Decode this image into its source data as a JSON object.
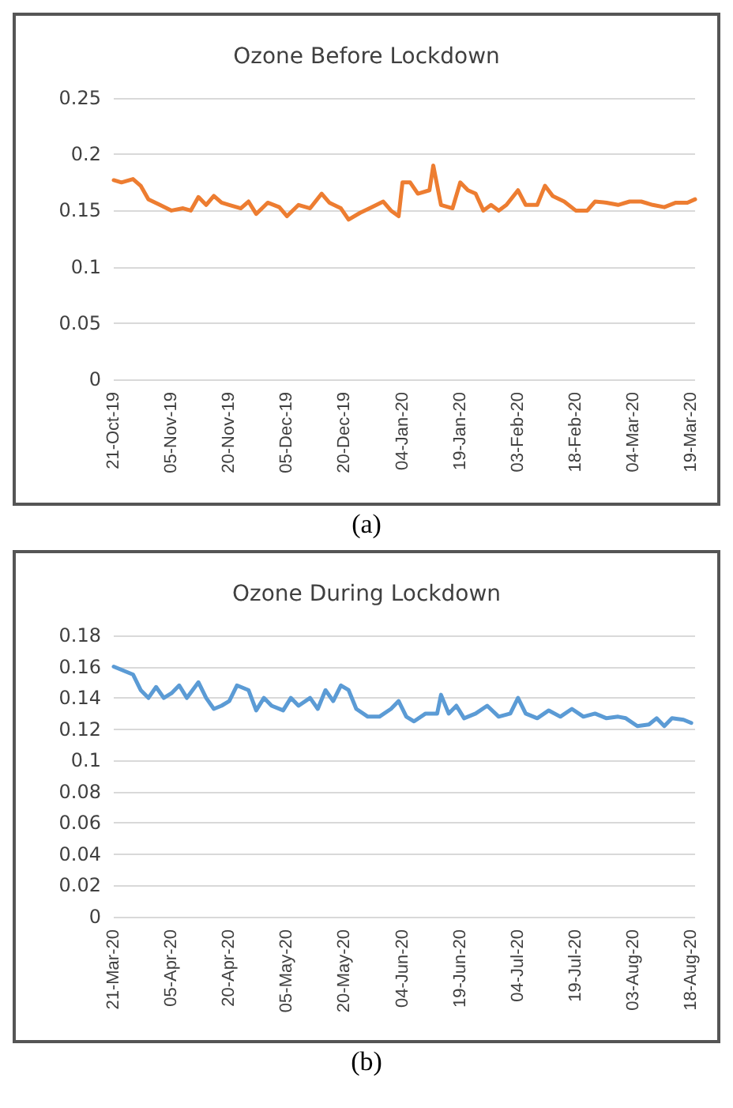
{
  "chart_data": [
    {
      "type": "line",
      "title": "Ozone Before Lockdown",
      "annotations": [
        "(a)"
      ],
      "grid": "y",
      "marker": "none",
      "line_style": "solid",
      "x": [
        "2019-10-21",
        "2019-10-23",
        "2019-10-26",
        "2019-10-28",
        "2019-10-30",
        "2019-11-02",
        "2019-11-05",
        "2019-11-08",
        "2019-11-10",
        "2019-11-12",
        "2019-11-14",
        "2019-11-16",
        "2019-11-18",
        "2019-11-20",
        "2019-11-23",
        "2019-11-25",
        "2019-11-27",
        "2019-11-30",
        "2019-12-03",
        "2019-12-05",
        "2019-12-08",
        "2019-12-11",
        "2019-12-14",
        "2019-12-16",
        "2019-12-19",
        "2019-12-21",
        "2019-12-24",
        "2019-12-27",
        "2019-12-30",
        "2020-01-01",
        "2020-01-03",
        "2020-01-04",
        "2020-01-06",
        "2020-01-08",
        "2020-01-11",
        "2020-01-12",
        "2020-01-14",
        "2020-01-17",
        "2020-01-19",
        "2020-01-21",
        "2020-01-23",
        "2020-01-25",
        "2020-01-27",
        "2020-01-29",
        "2020-01-31",
        "2020-02-03",
        "2020-02-05",
        "2020-02-08",
        "2020-02-10",
        "2020-02-12",
        "2020-02-15",
        "2020-02-18",
        "2020-02-21",
        "2020-02-23",
        "2020-02-26",
        "2020-02-29",
        "2020-03-03",
        "2020-03-06",
        "2020-03-09",
        "2020-03-12",
        "2020-03-15",
        "2020-03-18",
        "2020-03-20"
      ],
      "series": [
        {
          "color": "#ed7d31",
          "values": [
            0.177,
            0.175,
            0.178,
            0.172,
            0.16,
            0.155,
            0.15,
            0.152,
            0.15,
            0.162,
            0.155,
            0.163,
            0.157,
            0.155,
            0.152,
            0.158,
            0.147,
            0.157,
            0.153,
            0.145,
            0.155,
            0.152,
            0.165,
            0.157,
            0.152,
            0.142,
            0.148,
            0.153,
            0.158,
            0.15,
            0.145,
            0.175,
            0.175,
            0.165,
            0.168,
            0.19,
            0.155,
            0.152,
            0.175,
            0.168,
            0.165,
            0.15,
            0.155,
            0.15,
            0.155,
            0.168,
            0.155,
            0.155,
            0.172,
            0.163,
            0.158,
            0.15,
            0.15,
            0.158,
            0.157,
            0.155,
            0.158,
            0.158,
            0.155,
            0.153,
            0.157,
            0.157,
            0.16
          ]
        }
      ],
      "xlim": [
        "2019-10-21",
        "2020-03-20"
      ],
      "xticks": [
        {
          "value": "2019-10-21",
          "label": "21-Oct-19"
        },
        {
          "value": "2019-11-05",
          "label": "05-Nov-19"
        },
        {
          "value": "2019-11-20",
          "label": "20-Nov-19"
        },
        {
          "value": "2019-12-05",
          "label": "05-Dec-19"
        },
        {
          "value": "2019-12-20",
          "label": "20-Dec-19"
        },
        {
          "value": "2020-01-04",
          "label": "04-Jan-20"
        },
        {
          "value": "2020-01-19",
          "label": "19-Jan-20"
        },
        {
          "value": "2020-02-03",
          "label": "03-Feb-20"
        },
        {
          "value": "2020-02-18",
          "label": "18-Feb-20"
        },
        {
          "value": "2020-03-04",
          "label": "04-Mar-20"
        },
        {
          "value": "2020-03-19",
          "label": "19-Mar-20"
        }
      ],
      "ylim": [
        0,
        0.25
      ],
      "yticks": [
        0,
        0.05,
        0.1,
        0.15,
        0.2,
        0.25
      ]
    },
    {
      "type": "line",
      "title": "Ozone During Lockdown",
      "annotations": [
        "(b)"
      ],
      "grid": "y",
      "marker": "none",
      "line_style": "solid",
      "x": [
        "2020-03-21",
        "2020-03-24",
        "2020-03-26",
        "2020-03-28",
        "2020-03-30",
        "2020-04-01",
        "2020-04-03",
        "2020-04-05",
        "2020-04-07",
        "2020-04-09",
        "2020-04-12",
        "2020-04-14",
        "2020-04-16",
        "2020-04-18",
        "2020-04-20",
        "2020-04-22",
        "2020-04-25",
        "2020-04-27",
        "2020-04-29",
        "2020-05-01",
        "2020-05-04",
        "2020-05-06",
        "2020-05-08",
        "2020-05-11",
        "2020-05-13",
        "2020-05-15",
        "2020-05-17",
        "2020-05-19",
        "2020-05-21",
        "2020-05-23",
        "2020-05-26",
        "2020-05-29",
        "2020-06-01",
        "2020-06-03",
        "2020-06-05",
        "2020-06-07",
        "2020-06-10",
        "2020-06-13",
        "2020-06-14",
        "2020-06-16",
        "2020-06-18",
        "2020-06-20",
        "2020-06-23",
        "2020-06-26",
        "2020-06-29",
        "2020-07-02",
        "2020-07-04",
        "2020-07-06",
        "2020-07-09",
        "2020-07-12",
        "2020-07-15",
        "2020-07-18",
        "2020-07-21",
        "2020-07-24",
        "2020-07-27",
        "2020-07-30",
        "2020-08-01",
        "2020-08-04",
        "2020-08-07",
        "2020-08-09",
        "2020-08-11",
        "2020-08-13",
        "2020-08-16",
        "2020-08-18"
      ],
      "series": [
        {
          "color": "#5b9bd5",
          "values": [
            0.16,
            0.157,
            0.155,
            0.145,
            0.14,
            0.147,
            0.14,
            0.143,
            0.148,
            0.14,
            0.15,
            0.14,
            0.133,
            0.135,
            0.138,
            0.148,
            0.145,
            0.132,
            0.14,
            0.135,
            0.132,
            0.14,
            0.135,
            0.14,
            0.133,
            0.145,
            0.138,
            0.148,
            0.145,
            0.133,
            0.128,
            0.128,
            0.133,
            0.138,
            0.128,
            0.125,
            0.13,
            0.13,
            0.142,
            0.13,
            0.135,
            0.127,
            0.13,
            0.135,
            0.128,
            0.13,
            0.14,
            0.13,
            0.127,
            0.132,
            0.128,
            0.133,
            0.128,
            0.13,
            0.127,
            0.128,
            0.127,
            0.122,
            0.123,
            0.127,
            0.122,
            0.127,
            0.126,
            0.124
          ]
        }
      ],
      "xlim": [
        "2020-03-21",
        "2020-08-19"
      ],
      "xticks": [
        {
          "value": "2020-03-21",
          "label": "21-Mar-20"
        },
        {
          "value": "2020-04-05",
          "label": "05-Apr-20"
        },
        {
          "value": "2020-04-20",
          "label": "20-Apr-20"
        },
        {
          "value": "2020-05-05",
          "label": "05-May-20"
        },
        {
          "value": "2020-05-20",
          "label": "20-May-20"
        },
        {
          "value": "2020-06-04",
          "label": "04-Jun-20"
        },
        {
          "value": "2020-06-19",
          "label": "19-Jun-20"
        },
        {
          "value": "2020-07-04",
          "label": "04-Jul-20"
        },
        {
          "value": "2020-07-19",
          "label": "19-Jul-20"
        },
        {
          "value": "2020-08-03",
          "label": "03-Aug-20"
        },
        {
          "value": "2020-08-18",
          "label": "18-Aug-20"
        }
      ],
      "ylim": [
        0,
        0.18
      ],
      "yticks": [
        0,
        0.02,
        0.04,
        0.06,
        0.08,
        0.1,
        0.12,
        0.14,
        0.16,
        0.18
      ]
    }
  ]
}
